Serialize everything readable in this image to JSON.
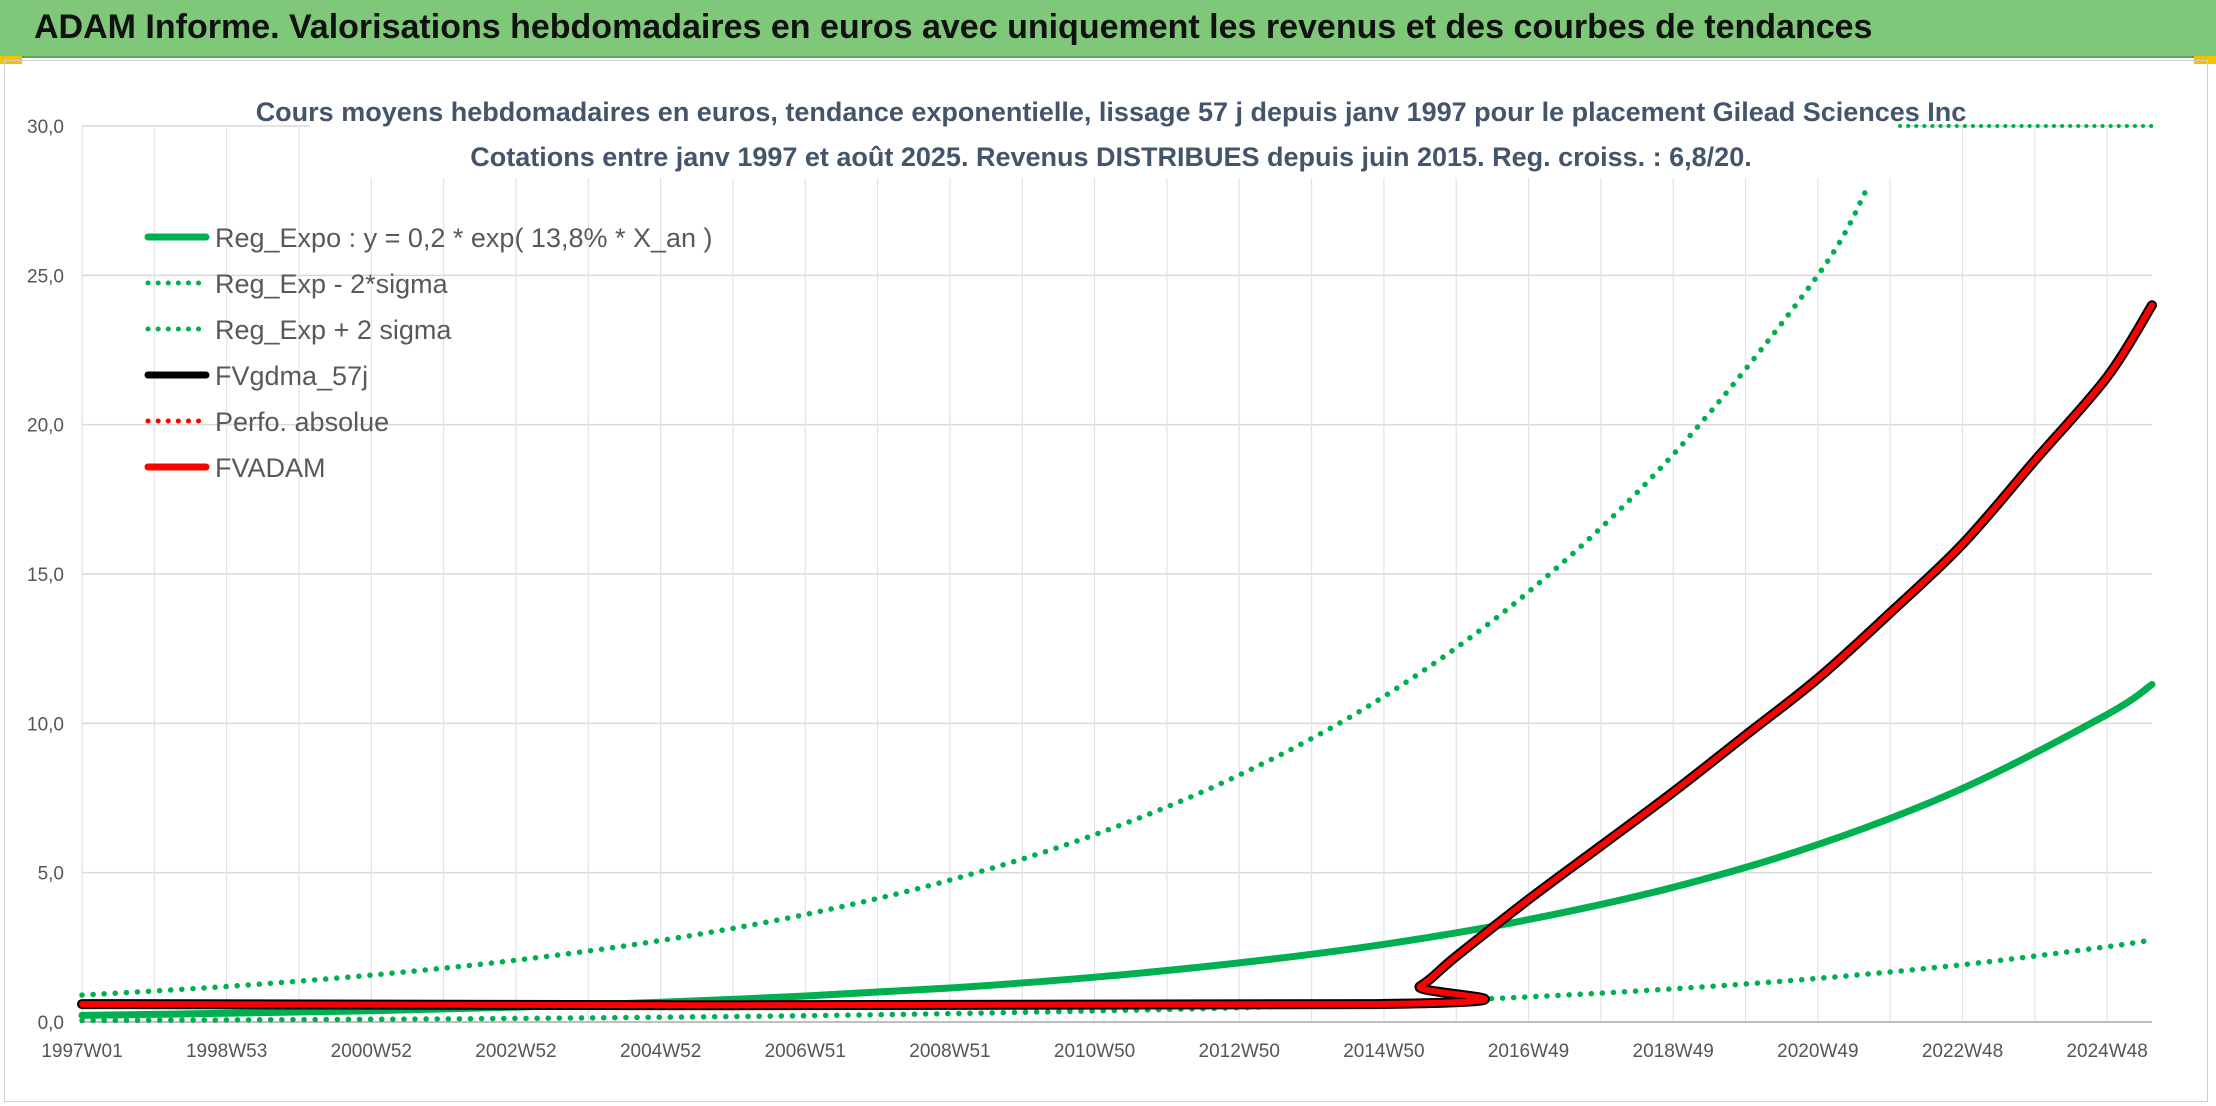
{
  "header": {
    "title": "ADAM Informe. Valorisations hebdomadaires en euros avec uniquement les revenus et des courbes de tendances"
  },
  "chart_data": {
    "type": "line",
    "title_line1": "Cours moyens hebdomadaires en euros, tendance exponentielle, lissage 57 j depuis janv 1997 pour le placement Gilead Sciences Inc",
    "title_line2": "Cotations entre janv 1997 et août 2025. Revenus DISTRIBUES depuis juin 2015. Reg. croiss. : 6,8/20.",
    "xlabel": "",
    "ylabel": "",
    "ylim": [
      0,
      30
    ],
    "y_ticks": [
      "0,0",
      "5,0",
      "10,0",
      "15,0",
      "20,0",
      "25,0",
      "30,0"
    ],
    "x_range_years": [
      1997.0,
      2025.62
    ],
    "x_ticks": [
      {
        "label": "1997W01",
        "year": 1997.0
      },
      {
        "label": "1998W53",
        "year": 1999.0
      },
      {
        "label": "2000W52",
        "year": 2001.0
      },
      {
        "label": "2002W52",
        "year": 2003.0
      },
      {
        "label": "2004W52",
        "year": 2005.0
      },
      {
        "label": "2006W51",
        "year": 2007.0
      },
      {
        "label": "2008W51",
        "year": 2009.0
      },
      {
        "label": "2010W50",
        "year": 2011.0
      },
      {
        "label": "2012W50",
        "year": 2013.0
      },
      {
        "label": "2014W50",
        "year": 2015.0
      },
      {
        "label": "2016W49",
        "year": 2017.0
      },
      {
        "label": "2018W49",
        "year": 2019.0
      },
      {
        "label": "2020W49",
        "year": 2021.0
      },
      {
        "label": "2022W48",
        "year": 2023.0
      },
      {
        "label": "2024W48",
        "year": 2025.0
      }
    ],
    "grid": true,
    "legend_position": "top-left",
    "series": [
      {
        "name": "Reg_Expo : y = 0,2 * exp( 13,8% *  X_an )",
        "color": "#00b050",
        "style": "solid",
        "x": [
          1997,
          1999,
          2001,
          2003,
          2005,
          2007,
          2009,
          2011,
          2013,
          2015,
          2017,
          2019,
          2021,
          2023,
          2025,
          2025.62
        ],
        "y": [
          0.22,
          0.29,
          0.38,
          0.5,
          0.66,
          0.87,
          1.14,
          1.5,
          1.98,
          2.6,
          3.43,
          4.51,
          5.94,
          7.82,
          10.3,
          11.3
        ]
      },
      {
        "name": "Reg_Exp - 2*sigma",
        "color": "#00b050",
        "style": "dotted",
        "x": [
          1997,
          1999,
          2001,
          2003,
          2005,
          2007,
          2009,
          2011,
          2013,
          2015,
          2017,
          2019,
          2021,
          2023,
          2025,
          2025.62
        ],
        "y": [
          0.05,
          0.07,
          0.09,
          0.12,
          0.16,
          0.21,
          0.28,
          0.37,
          0.48,
          0.64,
          0.84,
          1.11,
          1.46,
          1.92,
          2.52,
          2.75
        ]
      },
      {
        "name": "Reg_Exp + 2 sigma",
        "color": "#00b050",
        "style": "dotted",
        "x": [
          1997,
          1999,
          2001,
          2003,
          2005,
          2007,
          2009,
          2011,
          2013,
          2015,
          2017,
          2019,
          2021,
          2021.7
        ],
        "y": [
          0.9,
          1.19,
          1.57,
          2.07,
          2.73,
          3.6,
          4.75,
          6.27,
          8.27,
          10.9,
          14.4,
          19.0,
          25.0,
          28.0
        ]
      },
      {
        "name": "FVgdma_57j",
        "color": "#000000",
        "style": "solid",
        "x": [
          1997,
          2014.9,
          2015.5,
          2016,
          2017,
          2018,
          2019,
          2020,
          2021,
          2022,
          2023,
          2024,
          2025,
          2025.62
        ],
        "y": [
          0.6,
          0.6,
          1.2,
          2.2,
          4.1,
          5.9,
          7.7,
          9.6,
          11.5,
          13.7,
          16.0,
          18.8,
          21.6,
          24.0
        ]
      },
      {
        "name": "Perfo. absolue",
        "color": "#ff0000",
        "style": "dotted",
        "x": [],
        "y": []
      },
      {
        "name": "FVADAM",
        "color": "#ff0000",
        "style": "solid",
        "x": [
          1997,
          2014.9,
          2015.5,
          2016,
          2017,
          2018,
          2019,
          2020,
          2021,
          2022,
          2023,
          2024,
          2025,
          2025.62
        ],
        "y": [
          0.6,
          0.6,
          1.2,
          2.2,
          4.1,
          5.9,
          7.7,
          9.6,
          11.5,
          13.7,
          16.0,
          18.8,
          21.6,
          24.0
        ]
      }
    ],
    "upper_right_dotted_level": 30.0
  }
}
